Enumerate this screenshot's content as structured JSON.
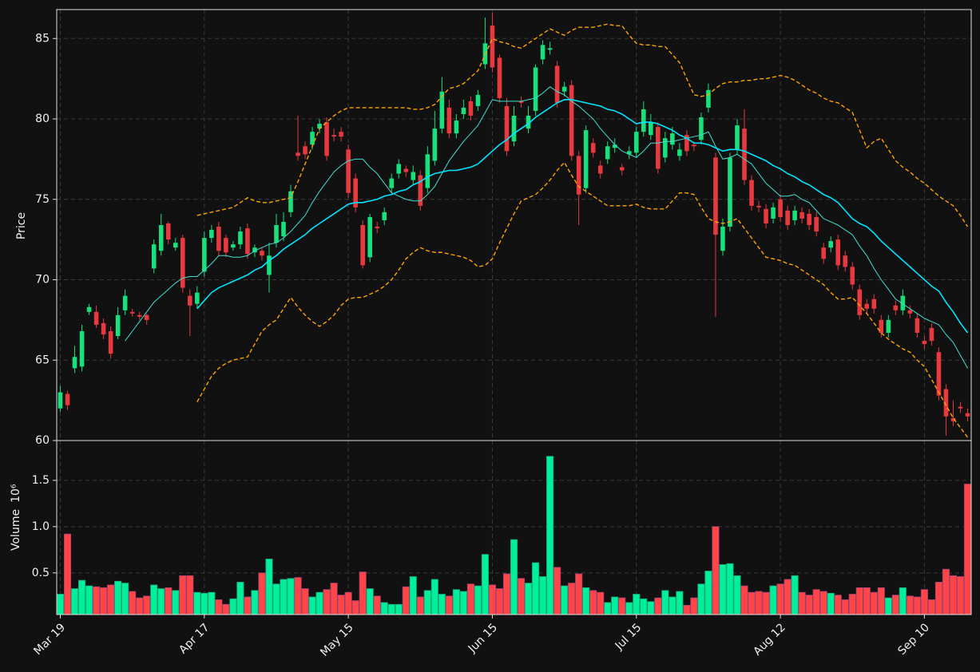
{
  "chart_data": {
    "type": "candlestick",
    "ylabel": "Price",
    "ylim": [
      60,
      86.8
    ],
    "yticks": [
      60,
      65,
      70,
      75,
      80,
      85
    ],
    "grid": true,
    "up_color": "#17e07c",
    "down_color": "#e8393f",
    "categories": [
      "Mar 19",
      null,
      null,
      null,
      null,
      null,
      null,
      null,
      null,
      null,
      null,
      null,
      null,
      null,
      null,
      null,
      null,
      null,
      null,
      null,
      "Apr 17",
      null,
      null,
      null,
      null,
      null,
      null,
      null,
      null,
      null,
      null,
      null,
      null,
      null,
      null,
      null,
      null,
      null,
      null,
      null,
      "May 15",
      null,
      null,
      null,
      null,
      null,
      null,
      null,
      null,
      null,
      null,
      null,
      null,
      null,
      null,
      null,
      null,
      null,
      null,
      null,
      "Jun 15",
      null,
      null,
      null,
      null,
      null,
      null,
      null,
      null,
      null,
      null,
      null,
      null,
      null,
      null,
      null,
      null,
      null,
      null,
      null,
      "Jul 15",
      null,
      null,
      null,
      null,
      null,
      null,
      null,
      null,
      null,
      null,
      null,
      null,
      null,
      null,
      null,
      null,
      null,
      null,
      null,
      "Aug 12",
      null,
      null,
      null,
      null,
      null,
      null,
      null,
      null,
      null,
      null,
      null,
      null,
      null,
      null,
      null,
      null,
      null,
      null,
      null,
      "Sep 10",
      null,
      null,
      null,
      null,
      null,
      null
    ],
    "open": [
      62.0,
      62.9,
      64.5,
      64.6,
      68.0,
      68.0,
      67.3,
      66.8,
      66.5,
      68.1,
      68.0,
      67.8,
      67.8,
      70.7,
      71.8,
      73.5,
      72.0,
      72.6,
      69.0,
      68.5,
      70.5,
      72.6,
      73.3,
      72.6,
      72.0,
      72.2,
      73.2,
      71.7,
      71.8,
      70.3,
      72.3,
      72.7,
      74.2,
      77.9,
      78.3,
      78.4,
      79.4,
      79.8,
      79.0,
      79.2,
      78.1,
      76.3,
      73.4,
      71.4,
      73.3,
      73.7,
      75.7,
      76.6,
      76.9,
      76.2,
      76.5,
      75.7,
      77.4,
      79.4,
      80.7,
      79.1,
      80.3,
      81.1,
      80.8,
      83.4,
      85.8,
      83.8,
      80.8,
      78.6,
      81.1,
      79.4,
      80.5,
      83.7,
      84.3,
      83.3,
      81.7,
      82.1,
      77.7,
      75.7,
      78.5,
      77.1,
      77.5,
      78.2,
      77.0,
      77.8,
      77.9,
      79.2,
      79.0,
      79.5,
      77.6,
      78.4,
      77.7,
      79.0,
      78.4,
      78.7,
      80.7,
      77.6,
      71.8,
      73.3,
      78.1,
      79.4,
      76.2,
      74.6,
      74.4,
      73.8,
      75.0,
      74.3,
      73.7,
      74.2,
      74.1,
      73.9,
      72.0,
      72.0,
      72.5,
      71.5,
      70.8,
      69.4,
      68.5,
      68.8,
      67.5,
      66.7,
      68.4,
      68.1,
      68.1,
      67.6,
      66.2,
      67.0,
      65.5,
      63.2,
      61.4,
      62.1,
      61.7
    ],
    "high": [
      63.4,
      63.1,
      65.9,
      67.2,
      68.5,
      68.4,
      67.6,
      67.1,
      68.3,
      69.4,
      68.2,
      68.0,
      67.9,
      72.5,
      74.1,
      73.6,
      72.6,
      72.8,
      69.4,
      69.6,
      73.0,
      73.4,
      73.6,
      72.8,
      72.4,
      73.3,
      73.5,
      72.2,
      72.0,
      72.3,
      74.1,
      74.2,
      75.9,
      80.2,
      78.6,
      79.5,
      80.0,
      80.1,
      79.4,
      79.5,
      78.4,
      76.6,
      73.7,
      74.1,
      73.6,
      74.5,
      76.6,
      77.5,
      77.1,
      77.1,
      76.8,
      78.3,
      80.5,
      82.6,
      81.2,
      80.3,
      81.2,
      81.4,
      81.8,
      86.3,
      86.6,
      84.0,
      81.3,
      80.8,
      81.4,
      80.8,
      83.4,
      84.9,
      84.8,
      83.6,
      82.3,
      82.4,
      78.0,
      79.6,
      78.8,
      77.4,
      78.6,
      78.8,
      77.2,
      78.3,
      79.5,
      81.1,
      80.3,
      79.8,
      79.2,
      79.5,
      78.5,
      79.3,
      78.6,
      80.4,
      82.2,
      77.9,
      73.8,
      77.9,
      80.0,
      80.6,
      76.5,
      74.9,
      74.7,
      74.8,
      75.3,
      74.6,
      74.6,
      74.5,
      74.4,
      74.2,
      72.3,
      72.7,
      72.8,
      71.8,
      71.1,
      69.7,
      68.8,
      69.1,
      67.8,
      67.8,
      68.7,
      69.4,
      68.4,
      67.9,
      66.5,
      67.3,
      65.8,
      63.5,
      62.5,
      62.4,
      62.0
    ],
    "low": [
      61.8,
      61.9,
      64.2,
      64.3,
      67.8,
      67.0,
      66.3,
      65.1,
      66.3,
      67.8,
      67.7,
      67.5,
      67.2,
      70.4,
      71.5,
      72.2,
      71.8,
      69.2,
      66.5,
      68.2,
      70.2,
      72.3,
      71.5,
      71.4,
      71.8,
      71.9,
      71.3,
      71.4,
      71.2,
      69.2,
      72.0,
      72.4,
      73.9,
      77.4,
      77.5,
      78.1,
      79.1,
      77.4,
      78.6,
      78.6,
      75.1,
      74.2,
      70.7,
      71.1,
      72.9,
      73.4,
      75.4,
      76.3,
      76.4,
      75.9,
      74.3,
      75.4,
      77.1,
      79.1,
      78.8,
      78.8,
      80.0,
      79.9,
      80.5,
      83.1,
      82.9,
      81.0,
      77.7,
      78.3,
      80.7,
      79.1,
      80.2,
      83.4,
      84.0,
      80.7,
      81.4,
      77.4,
      73.4,
      75.4,
      77.6,
      76.3,
      77.2,
      77.9,
      76.5,
      77.5,
      77.6,
      78.9,
      78.7,
      76.6,
      77.3,
      78.1,
      77.4,
      77.7,
      78.0,
      78.4,
      80.4,
      67.7,
      71.5,
      73.0,
      77.8,
      75.9,
      74.3,
      74.2,
      73.2,
      73.5,
      73.6,
      73.1,
      73.4,
      73.5,
      73.1,
      72.7,
      71.0,
      71.7,
      70.6,
      70.5,
      69.4,
      67.5,
      67.9,
      67.9,
      66.4,
      66.4,
      67.8,
      67.8,
      67.6,
      66.4,
      65.7,
      65.9,
      62.5,
      60.3,
      60.9,
      61.7,
      61.2
    ],
    "close": [
      63.0,
      62.2,
      65.2,
      66.8,
      68.3,
      67.2,
      66.6,
      65.4,
      67.8,
      69.0,
      67.9,
      67.7,
      67.5,
      72.2,
      73.4,
      72.5,
      72.3,
      69.5,
      68.4,
      69.2,
      72.6,
      73.1,
      71.8,
      71.7,
      72.2,
      73.0,
      71.6,
      72.0,
      71.5,
      71.5,
      73.4,
      73.6,
      75.5,
      77.7,
      77.8,
      79.2,
      79.7,
      77.7,
      78.9,
      78.9,
      75.4,
      74.5,
      70.9,
      73.9,
      73.2,
      74.2,
      76.3,
      77.2,
      76.7,
      76.7,
      74.6,
      77.8,
      79.4,
      81.7,
      79.1,
      79.9,
      80.7,
      80.2,
      81.5,
      84.7,
      83.2,
      81.3,
      78.0,
      80.2,
      81.0,
      80.2,
      83.2,
      84.6,
      84.4,
      81.0,
      82.0,
      77.7,
      75.3,
      79.3,
      77.9,
      76.6,
      78.3,
      78.4,
      76.8,
      78.0,
      79.2,
      80.6,
      79.8,
      76.9,
      78.8,
      79.1,
      78.1,
      78.0,
      78.3,
      80.1,
      81.8,
      72.8,
      73.3,
      77.6,
      79.6,
      76.2,
      74.6,
      74.5,
      73.5,
      74.5,
      73.9,
      73.4,
      74.3,
      73.8,
      73.4,
      73.0,
      71.3,
      72.4,
      70.9,
      70.8,
      69.7,
      67.8,
      68.2,
      68.2,
      66.7,
      67.5,
      68.1,
      69.0,
      67.9,
      66.7,
      66.0,
      66.2,
      62.8,
      61.5,
      61.2,
      62.0,
      61.5
    ],
    "lines": [
      {
        "color": "#40e0d0",
        "width": 1,
        "dashed": false,
        "values": [
          null,
          null,
          null,
          null,
          null,
          null,
          null,
          null,
          null,
          66.2,
          66.8,
          67.4,
          68.0,
          68.6,
          69.0,
          69.4,
          69.8,
          70.1,
          70.2,
          70.2,
          70.6,
          71.0,
          71.5,
          71.5,
          71.4,
          71.4,
          71.5,
          71.8,
          72.0,
          72.2,
          72.3,
          72.6,
          73.0,
          73.5,
          74.0,
          74.8,
          75.5,
          76.1,
          76.7,
          77.1,
          77.4,
          77.5,
          77.5,
          77.0,
          76.6,
          76.0,
          75.4,
          75.2,
          75.0,
          74.9,
          74.9,
          75.3,
          75.8,
          76.6,
          77.4,
          78.0,
          78.6,
          79.1,
          79.6,
          80.4,
          81.2,
          81.1,
          81.1,
          81.1,
          81.1,
          81.2,
          81.3,
          81.6,
          82.0,
          81.7,
          81.5,
          81.1,
          80.8,
          80.4,
          80.0,
          79.4,
          78.9,
          78.4,
          78.0,
          77.8,
          77.6,
          78.0,
          78.5,
          78.5,
          78.6,
          78.6,
          78.7,
          78.8,
          78.9,
          79.0,
          79.2,
          78.3,
          77.5,
          77.6,
          77.8,
          77.5,
          77.2,
          76.6,
          76.0,
          75.6,
          75.2,
          75.2,
          75.3,
          75.0,
          74.8,
          74.3,
          73.8,
          73.6,
          73.4,
          73.1,
          72.8,
          72.1,
          71.5,
          70.7,
          70.0,
          69.4,
          68.8,
          68.5,
          68.2,
          67.9,
          67.6,
          67.4,
          67.2,
          66.6,
          66.1,
          65.3,
          64.5
        ]
      },
      {
        "color": "#00e5ff",
        "width": 1.6,
        "dashed": false,
        "values": [
          null,
          null,
          null,
          null,
          null,
          null,
          null,
          null,
          null,
          null,
          null,
          null,
          null,
          null,
          null,
          null,
          null,
          null,
          null,
          68.2,
          68.7,
          69.2,
          69.5,
          69.7,
          69.9,
          70.1,
          70.3,
          70.6,
          70.8,
          71.2,
          71.5,
          71.9,
          72.2,
          72.5,
          72.8,
          73.2,
          73.5,
          73.8,
          74.1,
          74.4,
          74.7,
          74.8,
          74.8,
          74.9,
          75.0,
          75.2,
          75.3,
          75.5,
          75.6,
          75.9,
          76.1,
          76.4,
          76.6,
          76.7,
          76.8,
          76.8,
          76.9,
          77.0,
          77.2,
          77.6,
          78.0,
          78.4,
          78.7,
          79.1,
          79.4,
          79.7,
          80.1,
          80.4,
          80.7,
          81.0,
          81.2,
          81.2,
          81.1,
          81.0,
          80.9,
          80.8,
          80.6,
          80.5,
          80.3,
          80.0,
          79.7,
          79.8,
          79.8,
          79.7,
          79.5,
          79.3,
          79.0,
          78.8,
          78.5,
          78.5,
          78.4,
          78.2,
          78.0,
          78.1,
          78.1,
          78.0,
          77.8,
          77.6,
          77.4,
          77.1,
          76.9,
          76.6,
          76.4,
          76.1,
          75.9,
          75.6,
          75.3,
          75.1,
          74.8,
          74.3,
          73.8,
          73.5,
          73.3,
          72.9,
          72.4,
          72.0,
          71.6,
          71.2,
          70.8,
          70.4,
          70.0,
          69.6,
          69.3,
          68.6,
          68.0,
          67.3,
          66.7
        ]
      },
      {
        "color": "#ffa500",
        "width": 1.4,
        "dashed": true,
        "values": [
          null,
          null,
          null,
          null,
          null,
          null,
          null,
          null,
          null,
          null,
          null,
          null,
          null,
          null,
          null,
          null,
          null,
          null,
          null,
          74.0,
          74.1,
          74.2,
          74.3,
          74.4,
          74.5,
          74.8,
          75.1,
          74.9,
          74.8,
          74.8,
          74.9,
          75.0,
          75.1,
          76.1,
          77.2,
          78.3,
          79.4,
          79.8,
          80.2,
          80.5,
          80.7,
          80.7,
          80.7,
          80.7,
          80.7,
          80.7,
          80.7,
          80.7,
          80.7,
          80.6,
          80.6,
          80.7,
          80.9,
          81.4,
          81.9,
          82.0,
          82.2,
          82.6,
          83.0,
          84.0,
          85.0,
          84.8,
          84.7,
          84.5,
          84.4,
          84.7,
          85.0,
          85.3,
          85.6,
          85.4,
          85.2,
          85.5,
          85.7,
          85.7,
          85.7,
          85.8,
          85.9,
          85.8,
          85.8,
          85.2,
          84.7,
          84.6,
          84.6,
          84.5,
          84.5,
          84.0,
          83.5,
          82.5,
          81.5,
          81.4,
          81.5,
          81.9,
          82.2,
          82.3,
          82.3,
          82.4,
          82.4,
          82.5,
          82.5,
          82.6,
          82.7,
          82.6,
          82.4,
          82.1,
          81.8,
          81.6,
          81.3,
          81.1,
          81.0,
          80.7,
          80.4,
          79.3,
          78.2,
          78.6,
          78.8,
          78.1,
          77.4,
          77.0,
          76.7,
          76.3,
          76.0,
          75.6,
          75.2,
          74.9,
          74.6,
          74.0,
          73.3
        ]
      },
      {
        "color": "#ffa500",
        "width": 1.4,
        "dashed": true,
        "values": [
          null,
          null,
          null,
          null,
          null,
          null,
          null,
          null,
          null,
          null,
          null,
          null,
          null,
          null,
          null,
          null,
          null,
          null,
          null,
          62.4,
          63.2,
          64.0,
          64.5,
          64.8,
          65.0,
          65.1,
          65.2,
          66.0,
          66.8,
          67.2,
          67.5,
          68.2,
          68.9,
          68.3,
          67.8,
          67.4,
          67.1,
          67.4,
          67.8,
          68.4,
          68.8,
          68.9,
          68.9,
          69.1,
          69.3,
          69.6,
          70.0,
          70.6,
          71.3,
          71.7,
          72.0,
          71.8,
          71.7,
          71.7,
          71.6,
          71.5,
          71.4,
          71.2,
          70.8,
          70.9,
          71.3,
          72.3,
          73.2,
          74.1,
          74.9,
          75.1,
          75.3,
          75.7,
          76.2,
          76.8,
          77.3,
          76.5,
          75.8,
          75.5,
          75.2,
          74.9,
          74.6,
          74.6,
          74.6,
          74.6,
          74.7,
          74.5,
          74.4,
          74.4,
          74.4,
          74.9,
          75.4,
          75.4,
          75.3,
          74.5,
          73.8,
          73.6,
          73.5,
          73.6,
          73.8,
          73.2,
          72.6,
          72.0,
          71.4,
          71.3,
          71.2,
          71.0,
          70.9,
          70.6,
          70.3,
          70.0,
          69.7,
          69.2,
          68.8,
          68.8,
          68.9,
          68.4,
          67.9,
          67.3,
          66.7,
          66.3,
          66.0,
          65.7,
          65.5,
          65.0,
          64.6,
          63.8,
          63.0,
          62.2,
          61.4,
          60.8,
          60.2
        ]
      }
    ],
    "volume": {
      "ylabel": "Volume",
      "scale_label": "10⁶",
      "ylim": [
        0.05,
        1.93
      ],
      "yticks": [
        0.5,
        {
          "value": 1,
          "label": "1.0"
        },
        1.5
      ],
      "up_color": "#00f09a",
      "down_color": "#ff4545",
      "values": [
        0.27,
        0.92,
        0.33,
        0.42,
        0.36,
        0.35,
        0.34,
        0.37,
        0.41,
        0.39,
        0.3,
        0.23,
        0.25,
        0.37,
        0.33,
        0.34,
        0.31,
        0.47,
        0.47,
        0.29,
        0.28,
        0.29,
        0.21,
        0.16,
        0.22,
        0.4,
        0.24,
        0.31,
        0.5,
        0.65,
        0.38,
        0.43,
        0.44,
        0.45,
        0.33,
        0.24,
        0.29,
        0.32,
        0.39,
        0.26,
        0.29,
        0.2,
        0.51,
        0.33,
        0.25,
        0.18,
        0.16,
        0.16,
        0.35,
        0.46,
        0.24,
        0.31,
        0.43,
        0.27,
        0.25,
        0.32,
        0.3,
        0.38,
        0.36,
        0.7,
        0.37,
        0.33,
        0.49,
        0.86,
        0.44,
        0.39,
        0.61,
        0.46,
        1.76,
        0.56,
        0.36,
        0.39,
        0.49,
        0.34,
        0.31,
        0.29,
        0.18,
        0.24,
        0.23,
        0.18,
        0.27,
        0.22,
        0.19,
        0.23,
        0.31,
        0.24,
        0.3,
        0.15,
        0.23,
        0.38,
        0.52,
        1.0,
        0.59,
        0.6,
        0.47,
        0.36,
        0.29,
        0.3,
        0.29,
        0.36,
        0.38,
        0.43,
        0.47,
        0.29,
        0.26,
        0.32,
        0.3,
        0.28,
        0.26,
        0.21,
        0.27,
        0.34,
        0.34,
        0.29,
        0.34,
        0.23,
        0.26,
        0.34,
        0.25,
        0.24,
        0.32,
        0.21,
        0.4,
        0.54,
        0.47,
        0.46,
        1.46
      ]
    }
  }
}
